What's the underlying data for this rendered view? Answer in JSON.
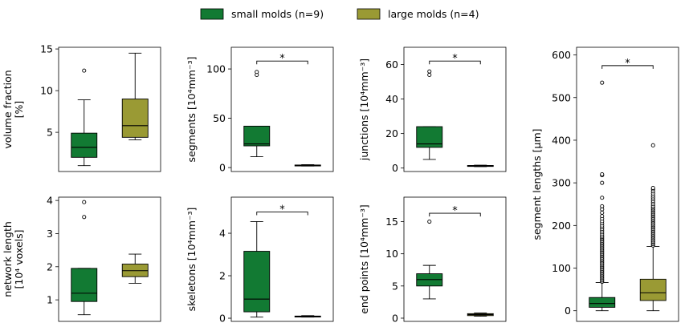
{
  "legend": [
    {
      "label": "small molds (n=9)",
      "color": "#127a33"
    },
    {
      "label": "large molds (n=4)",
      "color": "#9a9a34"
    }
  ],
  "chart_data": [
    {
      "type": "box",
      "id": "vf",
      "ylabel": [
        "volume fraction",
        "[%]"
      ],
      "ylim": [
        0.3,
        15.2
      ],
      "ticks": [
        5,
        10,
        15
      ],
      "series": [
        {
          "name": "small molds (n=9)",
          "whislo": 1.0,
          "q1": 2.0,
          "med": 3.2,
          "q3": 4.9,
          "whishi": 8.9,
          "fliers": [
            12.4
          ]
        },
        {
          "name": "large molds (n=4)",
          "whislo": 4.1,
          "q1": 4.4,
          "med": 5.8,
          "q3": 9.0,
          "whishi": 14.5,
          "fliers": []
        }
      ]
    },
    {
      "type": "box",
      "id": "seg",
      "ylabel": [
        "segments [10⁴mm⁻³]"
      ],
      "ylim": [
        -4,
        122
      ],
      "ticks": [
        0,
        50,
        100
      ],
      "significance": {
        "label": "*",
        "y": 108
      },
      "series": [
        {
          "name": "small molds (n=9)",
          "whislo": 11,
          "q1": 22,
          "med": 24,
          "q3": 42,
          "whishi": 42,
          "fliers": [
            94,
            97
          ]
        },
        {
          "name": "large molds (n=4)",
          "whislo": 1.5,
          "q1": 1.8,
          "med": 2.2,
          "q3": 2.6,
          "whishi": 3.0,
          "fliers": []
        }
      ]
    },
    {
      "type": "box",
      "id": "junc",
      "ylabel": [
        "junctions [10⁴mm⁻³]"
      ],
      "ylim": [
        -2,
        70
      ],
      "ticks": [
        0,
        20,
        40,
        60
      ],
      "significance": {
        "label": "*",
        "y": 62
      },
      "series": [
        {
          "name": "small molds (n=9)",
          "whislo": 5,
          "q1": 12,
          "med": 14,
          "q3": 24,
          "whishi": 24,
          "fliers": [
            54,
            56
          ]
        },
        {
          "name": "large molds (n=4)",
          "whislo": 0.8,
          "q1": 1.0,
          "med": 1.2,
          "q3": 1.5,
          "whishi": 1.7,
          "fliers": []
        }
      ]
    },
    {
      "type": "box",
      "id": "nl",
      "ylabel": [
        "network length",
        "[10⁴ voxels]"
      ],
      "ylim": [
        0.35,
        4.1
      ],
      "ticks": [
        1,
        2,
        3,
        4
      ],
      "series": [
        {
          "name": "small molds (n=9)",
          "whislo": 0.55,
          "q1": 0.95,
          "med": 1.2,
          "q3": 1.95,
          "whishi": 1.95,
          "fliers": [
            3.5,
            3.95
          ]
        },
        {
          "name": "large molds (n=4)",
          "whislo": 1.5,
          "q1": 1.7,
          "med": 1.88,
          "q3": 2.08,
          "whishi": 2.38,
          "fliers": []
        }
      ]
    },
    {
      "type": "box",
      "id": "skel",
      "ylabel": [
        "skeletons [10⁴mm⁻³]"
      ],
      "ylim": [
        -0.15,
        5.7
      ],
      "ticks": [
        0,
        2,
        4
      ],
      "significance": {
        "label": "*",
        "y": 5.0
      },
      "series": [
        {
          "name": "small molds (n=9)",
          "whislo": 0.05,
          "q1": 0.3,
          "med": 0.9,
          "q3": 3.15,
          "whishi": 4.55,
          "fliers": []
        },
        {
          "name": "large molds (n=4)",
          "whislo": 0.05,
          "q1": 0.06,
          "med": 0.08,
          "q3": 0.1,
          "whishi": 0.12,
          "fliers": []
        }
      ]
    },
    {
      "type": "box",
      "id": "ep",
      "ylabel": [
        "end points [10⁴mm⁻³]"
      ],
      "ylim": [
        -0.5,
        18.8
      ],
      "ticks": [
        0,
        5,
        10,
        15
      ],
      "significance": {
        "label": "*",
        "y": 16.3
      },
      "series": [
        {
          "name": "small molds (n=9)",
          "whislo": 3.0,
          "q1": 5.0,
          "med": 6.0,
          "q3": 6.9,
          "whishi": 8.2,
          "fliers": [
            15.0
          ]
        },
        {
          "name": "large molds (n=4)",
          "whislo": 0.3,
          "q1": 0.4,
          "med": 0.55,
          "q3": 0.7,
          "whishi": 0.8,
          "fliers": []
        }
      ]
    },
    {
      "type": "box",
      "id": "sl",
      "ylabel": [
        "segment lengths [µm]"
      ],
      "ylim": [
        -25,
        618
      ],
      "ticks": [
        0,
        100,
        200,
        300,
        400,
        500,
        600
      ],
      "significance": {
        "label": "*",
        "y": 575
      },
      "series": [
        {
          "name": "small molds (n=9)",
          "whislo": 0,
          "q1": 8,
          "med": 17,
          "q3": 31,
          "whishi": 66,
          "fliers": [
            68,
            71,
            74,
            77,
            80,
            83,
            86,
            89,
            92,
            95,
            98,
            101,
            104,
            107,
            110,
            113,
            116,
            119,
            122,
            125,
            128,
            131,
            134,
            137,
            140,
            143,
            146,
            149,
            152,
            155,
            158,
            161,
            164,
            167,
            170,
            173,
            176,
            180,
            184,
            188,
            192,
            196,
            200,
            205,
            210,
            216,
            222,
            230,
            238,
            245,
            265,
            300,
            318,
            320,
            535
          ]
        },
        {
          "name": "large molds (n=4)",
          "whislo": 0,
          "q1": 24,
          "med": 42,
          "q3": 74,
          "whishi": 151,
          "fliers": [
            153,
            156,
            159,
            162,
            165,
            168,
            171,
            174,
            177,
            180,
            183,
            186,
            189,
            192,
            195,
            198,
            201,
            204,
            207,
            210,
            213,
            216,
            219,
            222,
            225,
            228,
            231,
            234,
            237,
            240,
            243,
            246,
            250,
            254,
            258,
            262,
            266,
            270,
            275,
            280,
            285,
            288,
            388
          ]
        }
      ]
    }
  ]
}
